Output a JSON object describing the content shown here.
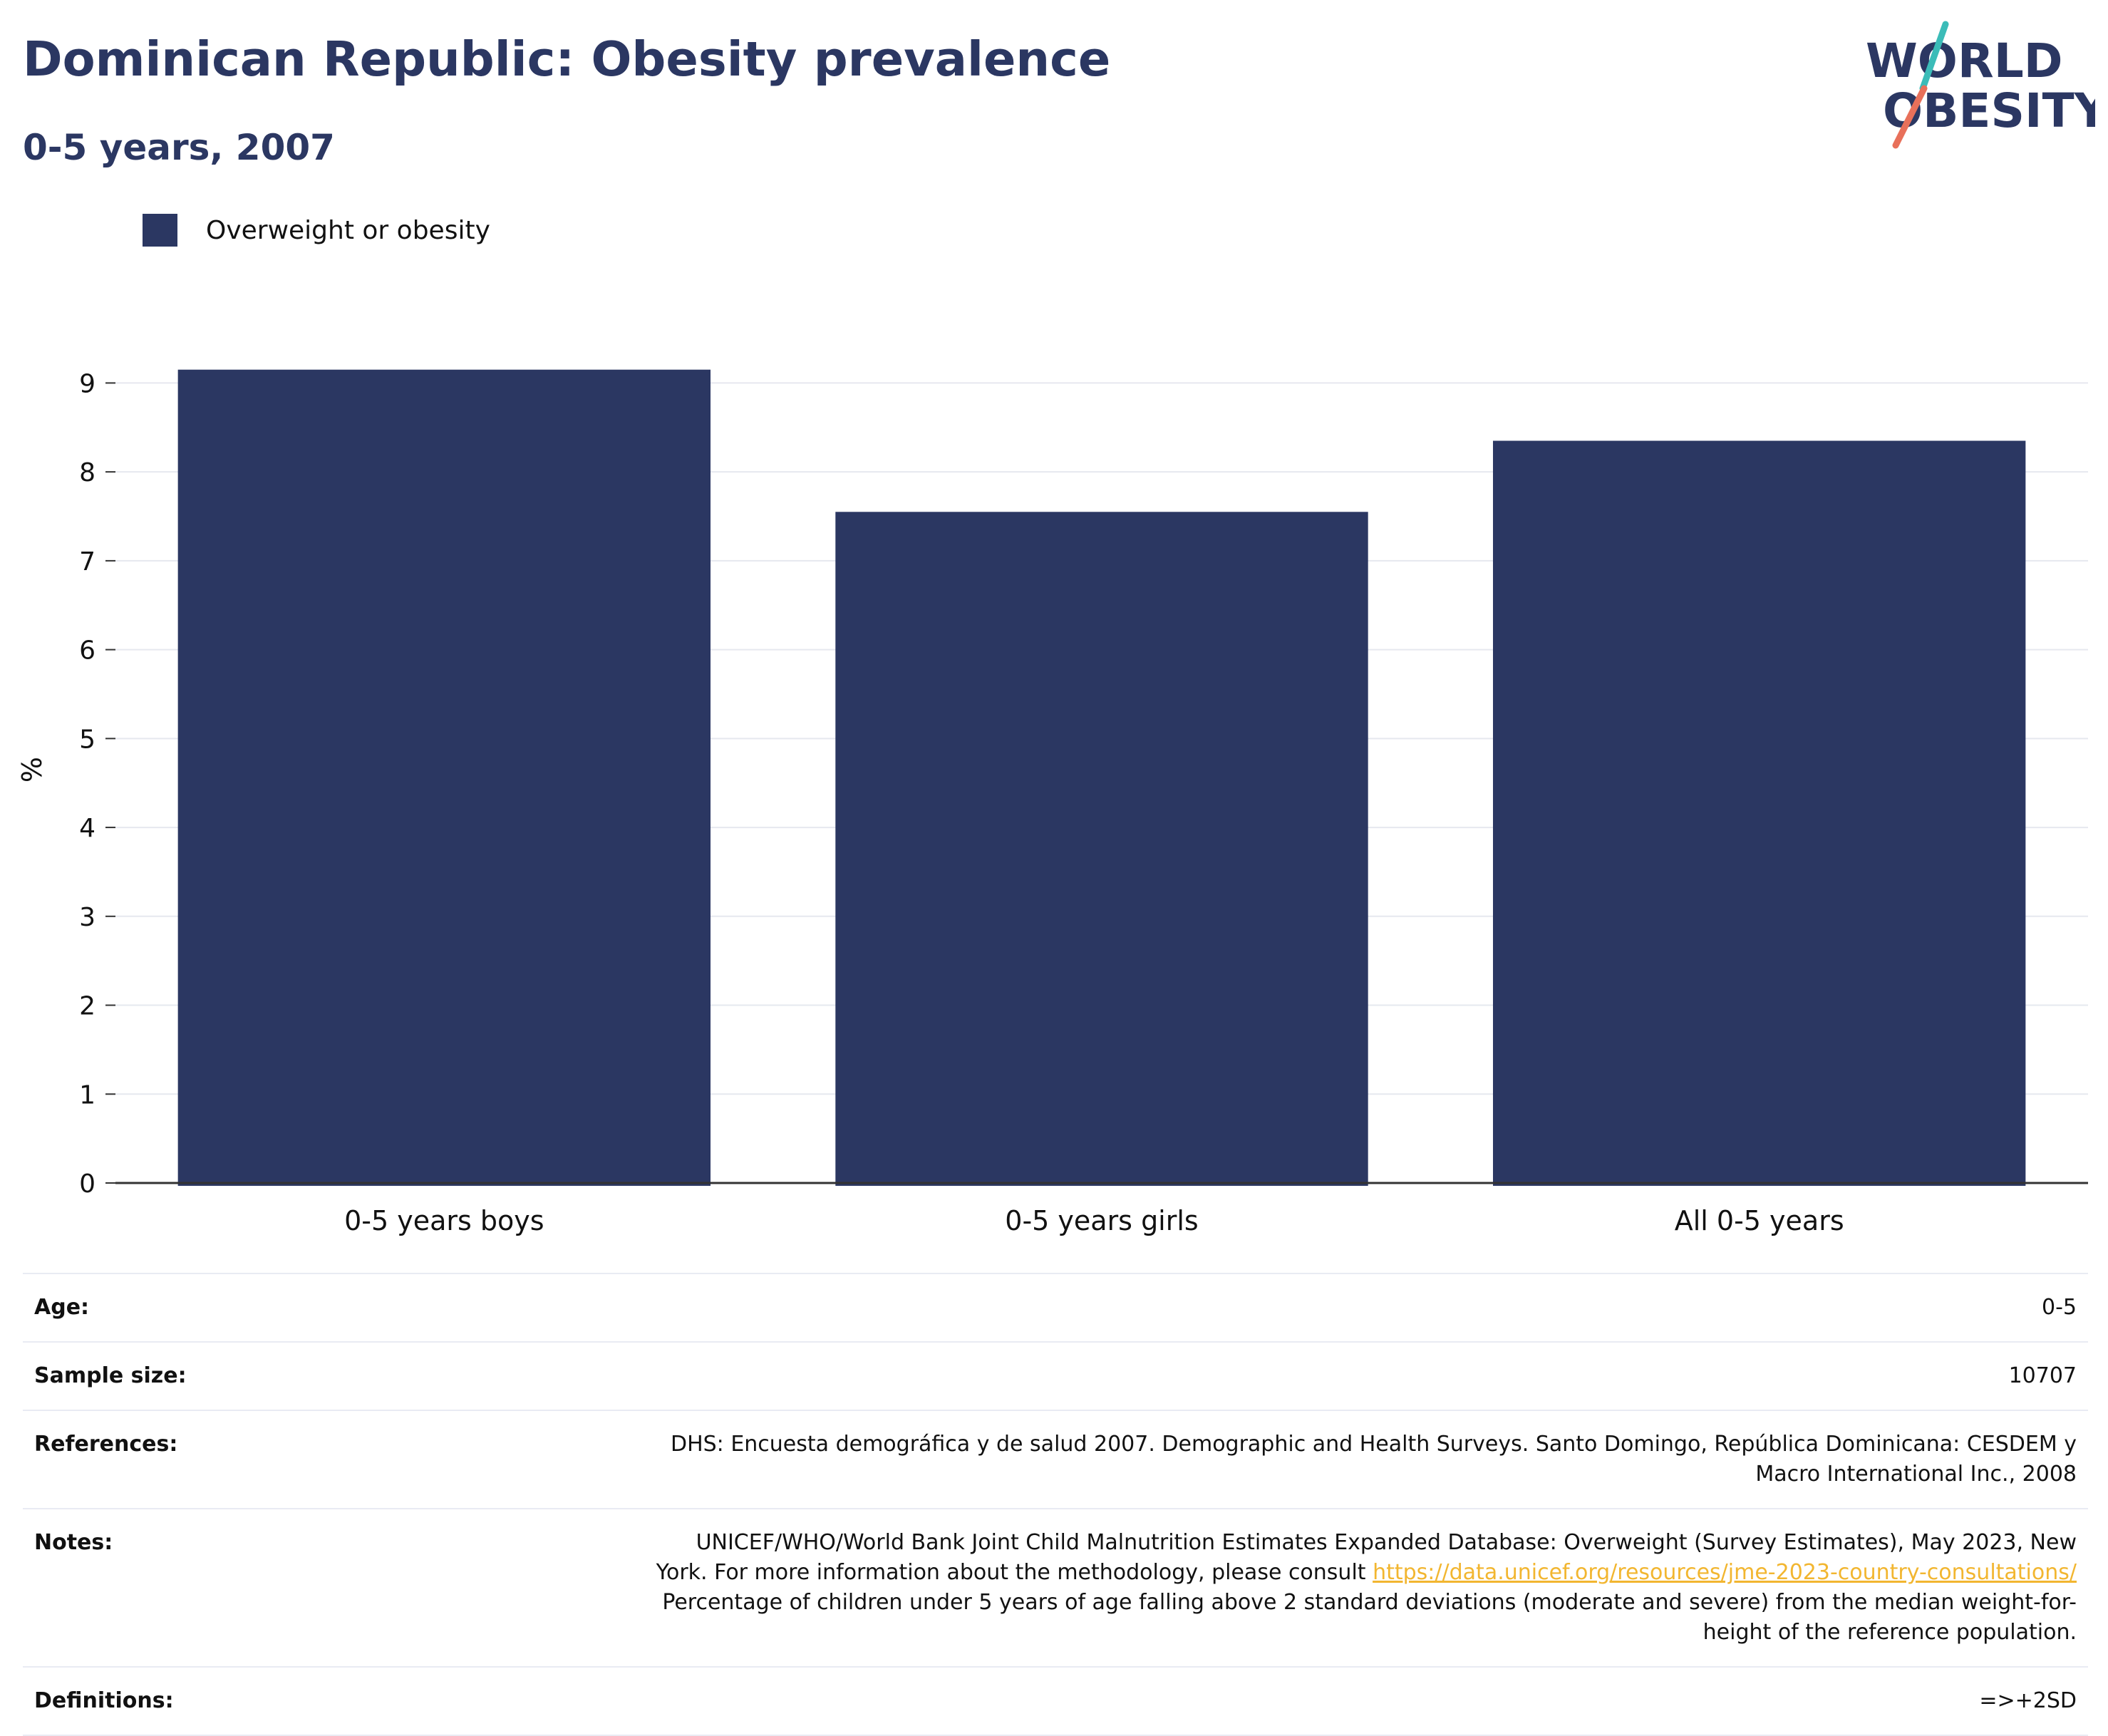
{
  "header": {
    "title": "Dominican Republic: Obesity prevalence",
    "subtitle": "0-5 years, 2007"
  },
  "logo": {
    "line1": "WORLD",
    "line2": "OBESITY",
    "colors": {
      "text": "#2b3762",
      "slash_top": "#3bbcb8",
      "slash_bottom": "#e8705a"
    }
  },
  "colors": {
    "bar": "#2b3762",
    "grid": "#e6e8ef",
    "axis": "#333333",
    "link": "#f2b630"
  },
  "chart_data": {
    "type": "bar",
    "categories": [
      "0-5 years boys",
      "0-5 years girls",
      "All 0-5 years"
    ],
    "series": [
      {
        "name": "Overweight or obesity",
        "values": [
          9.15,
          7.55,
          8.35
        ]
      }
    ],
    "ylabel": "%",
    "xlabel": "",
    "ylim": [
      0,
      9.3
    ],
    "yticks": [
      0,
      1,
      2,
      3,
      4,
      5,
      6,
      7,
      8,
      9
    ],
    "grid": true,
    "legend": "top-left"
  },
  "info": {
    "age": {
      "label": "Age:",
      "value": "0-5"
    },
    "sample_size": {
      "label": "Sample size:",
      "value": "10707"
    },
    "references": {
      "label": "References:",
      "line1": "DHS: Encuesta demográfica y de salud 2007. Demographic and Health Surveys. Santo Domingo, República Dominicana: CESDEM y",
      "line2": "Macro International Inc., 2008"
    },
    "notes": {
      "label": "Notes:",
      "line1": "UNICEF/WHO/World Bank Joint Child Malnutrition Estimates Expanded Database: Overweight (Survey Estimates), May 2023, New",
      "line2_prefix": "York. For more information about the methodology, please consult ",
      "link": "https://data.unicef.org/resources/jme-2023-country-consultations/",
      "line3": "Percentage of children under 5 years of age falling above 2 standard deviations (moderate and severe) from the median weight-for-",
      "line4": "height of the reference population."
    },
    "definitions": {
      "label": "Definitions:",
      "value": "=>+2SD"
    }
  }
}
